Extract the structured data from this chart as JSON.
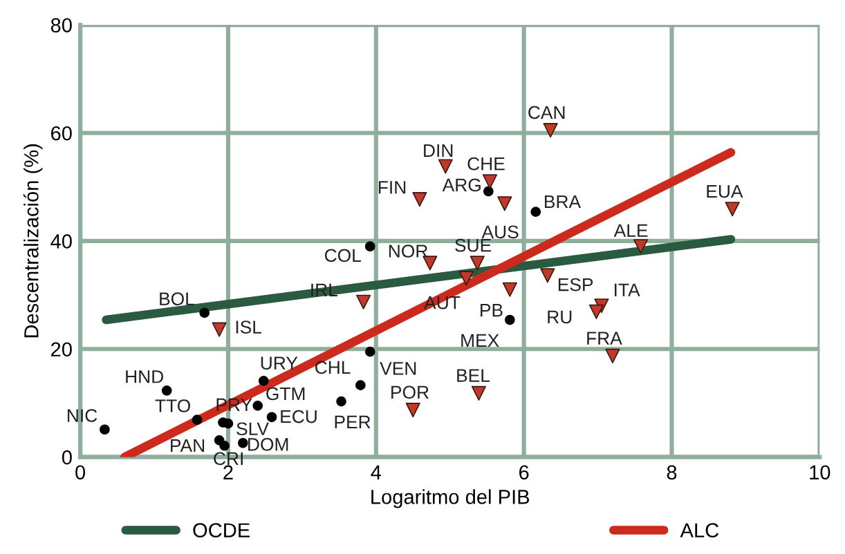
{
  "chart_data": {
    "type": "scatter",
    "xlabel": "Logaritmo del PIB",
    "ylabel": "Descentralización (%)",
    "xlim": [
      0,
      10
    ],
    "xticks": [
      0,
      2,
      4,
      6,
      8,
      10
    ],
    "ylim": [
      0,
      80
    ],
    "yticks": [
      0,
      20,
      40,
      60,
      80
    ],
    "grid": true,
    "legend": "bottom",
    "series": [
      {
        "type": "scatter",
        "marker": "circle",
        "color": "#000000",
        "x": [
          0.33,
          1.17,
          1.58,
          1.93,
          2.0,
          1.88,
          1.95,
          2.2,
          2.4,
          2.48,
          2.59,
          3.53,
          3.79,
          3.92,
          1.68,
          3.92,
          5.52,
          6.16,
          5.81
        ],
        "values": [
          5.1,
          12.3,
          6.9,
          6.4,
          6.2,
          3.1,
          2.1,
          2.6,
          9.5,
          14.1,
          7.4,
          10.3,
          13.3,
          19.5,
          26.7,
          39.0,
          49.2,
          45.4,
          25.4
        ]
      },
      {
        "type": "scatter",
        "marker": "triangle",
        "color": "#c0392b",
        "x": [
          6.36,
          4.94,
          5.54,
          4.59,
          5.74,
          8.82,
          7.58,
          4.73,
          5.37,
          5.22,
          6.32,
          5.81,
          7.05,
          6.98,
          7.2,
          5.39,
          4.5,
          3.83,
          1.88
        ],
        "values": [
          60.5,
          53.8,
          51.0,
          47.7,
          46.9,
          45.9,
          39.0,
          35.9,
          35.9,
          33.1,
          33.6,
          31.0,
          28.0,
          26.9,
          18.7,
          11.8,
          8.7,
          28.7,
          23.6
        ]
      },
      {
        "type": "line",
        "name": "OCDE",
        "color": "#2a5a40",
        "x": [
          0.35,
          8.8
        ],
        "values": [
          25.4,
          40.3
        ]
      },
      {
        "type": "line",
        "name": "ALC",
        "color": "#cc2a1c",
        "x": [
          0.6,
          8.8
        ],
        "values": [
          0,
          56.4
        ]
      }
    ],
    "annotations": [
      {
        "text": "NIC",
        "x": 0.33,
        "y": 5.1
      },
      {
        "text": "HND",
        "x": 1.17,
        "y": 12.3
      },
      {
        "text": "TTO",
        "x": 1.58,
        "y": 6.9
      },
      {
        "text": "PRY",
        "x": 1.93,
        "y": 6.4
      },
      {
        "text": "SLV",
        "x": 2.0,
        "y": 6.2
      },
      {
        "text": "PAN",
        "x": 1.88,
        "y": 3.1
      },
      {
        "text": "CRI",
        "x": 1.95,
        "y": 2.1
      },
      {
        "text": "DOM",
        "x": 2.2,
        "y": 2.6
      },
      {
        "text": "GTM",
        "x": 2.4,
        "y": 9.5
      },
      {
        "text": "URY",
        "x": 2.48,
        "y": 14.1
      },
      {
        "text": "ECU",
        "x": 2.59,
        "y": 7.4
      },
      {
        "text": "PER",
        "x": 3.53,
        "y": 10.3
      },
      {
        "text": "CHL",
        "x": 3.79,
        "y": 13.3
      },
      {
        "text": "VEN",
        "x": 3.92,
        "y": 19.5
      },
      {
        "text": "BOL",
        "x": 1.68,
        "y": 26.7
      },
      {
        "text": "COL",
        "x": 3.92,
        "y": 39.0
      },
      {
        "text": "ARG",
        "x": 5.52,
        "y": 49.2
      },
      {
        "text": "BRA",
        "x": 6.16,
        "y": 45.4
      },
      {
        "text": "MEX",
        "x": 5.81,
        "y": 25.4
      },
      {
        "text": "CAN",
        "x": 6.36,
        "y": 60.5
      },
      {
        "text": "DIN",
        "x": 4.94,
        "y": 53.8
      },
      {
        "text": "CHE",
        "x": 5.54,
        "y": 51.0
      },
      {
        "text": "FIN",
        "x": 4.59,
        "y": 47.7
      },
      {
        "text": "AUS",
        "x": 5.74,
        "y": 46.9
      },
      {
        "text": "EUA",
        "x": 8.82,
        "y": 45.9
      },
      {
        "text": "ALE",
        "x": 7.58,
        "y": 39.0
      },
      {
        "text": "NOR",
        "x": 4.73,
        "y": 35.9
      },
      {
        "text": "SUE",
        "x": 5.37,
        "y": 35.9
      },
      {
        "text": "AUT",
        "x": 5.22,
        "y": 33.1
      },
      {
        "text": "ESP",
        "x": 6.32,
        "y": 33.6
      },
      {
        "text": "PB",
        "x": 5.81,
        "y": 31.0
      },
      {
        "text": "ITA",
        "x": 7.05,
        "y": 28.0
      },
      {
        "text": "RU",
        "x": 6.98,
        "y": 26.9
      },
      {
        "text": "FRA",
        "x": 7.2,
        "y": 18.7
      },
      {
        "text": "BEL",
        "x": 5.39,
        "y": 11.8
      },
      {
        "text": "POR",
        "x": 4.5,
        "y": 8.7
      },
      {
        "text": "IRL",
        "x": 3.83,
        "y": 28.7
      },
      {
        "text": "ISL",
        "x": 1.88,
        "y": 23.6
      }
    ]
  }
}
